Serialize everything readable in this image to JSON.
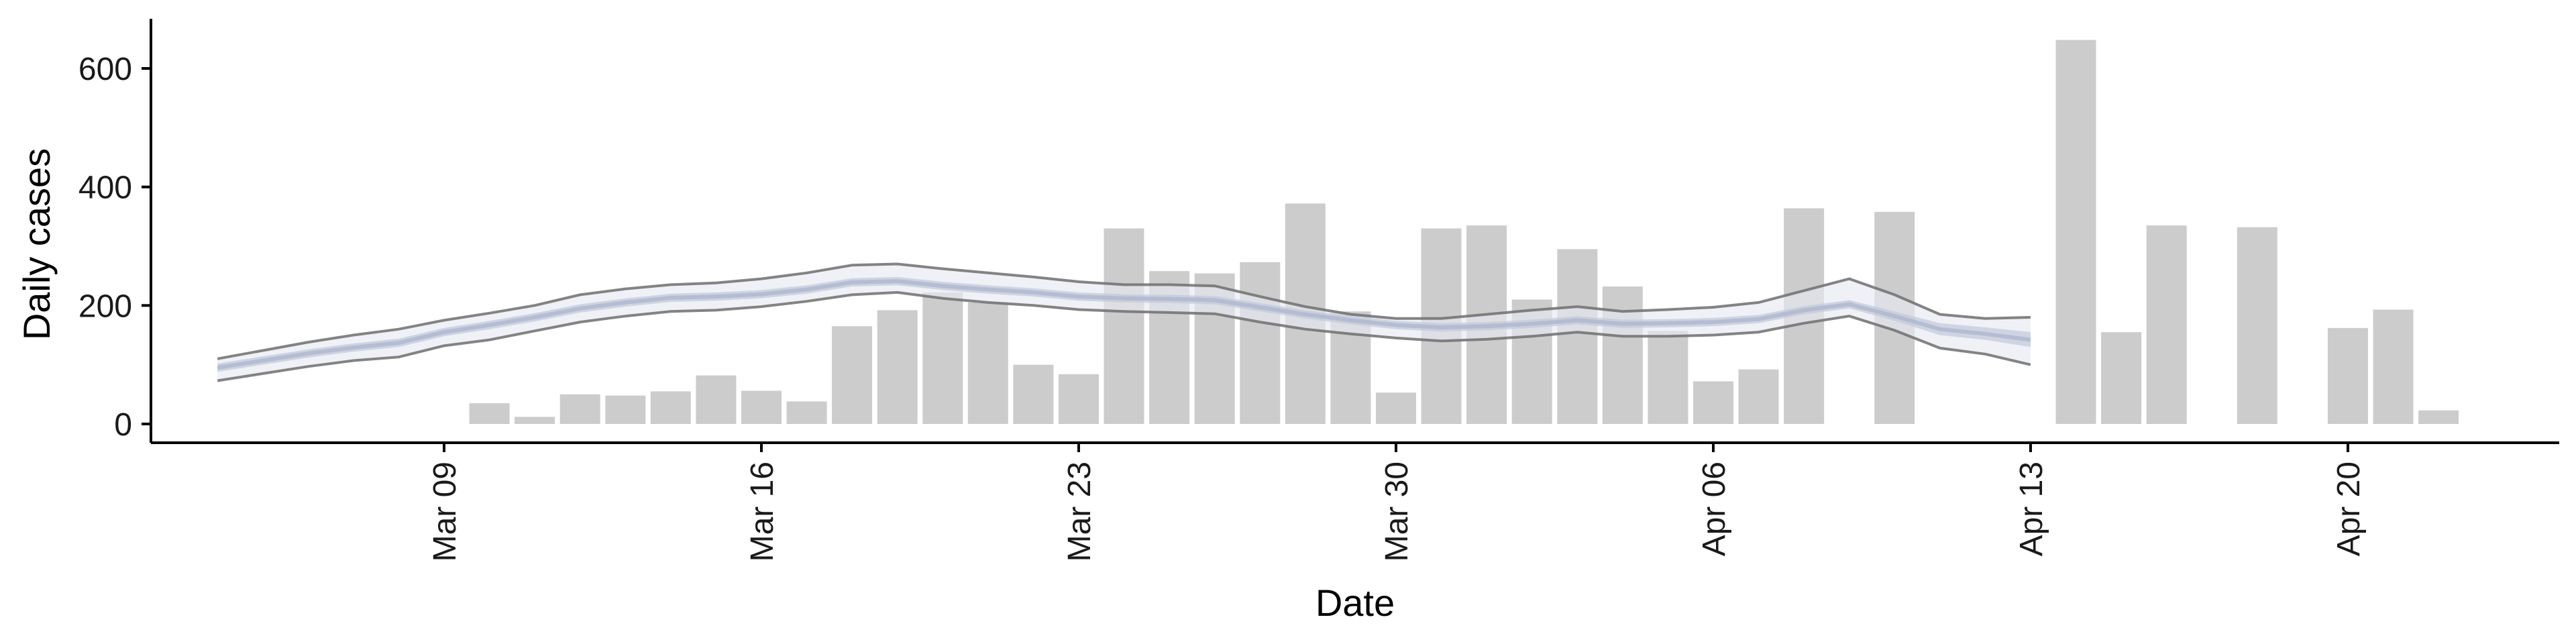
{
  "chart_data": {
    "type": "bar",
    "xlabel": "Date",
    "ylabel": "Daily cases",
    "ylim": [
      -30,
      680
    ],
    "yticks": [
      0,
      200,
      400,
      600
    ],
    "grid": false,
    "legend": "none",
    "x_ticks": [
      {
        "x": "2020-03-09",
        "label": "Mar 09"
      },
      {
        "x": "2020-03-16",
        "label": "Mar 16"
      },
      {
        "x": "2020-03-23",
        "label": "Mar 23"
      },
      {
        "x": "2020-03-30",
        "label": "Mar 30"
      },
      {
        "x": "2020-04-06",
        "label": "Apr 06"
      },
      {
        "x": "2020-04-13",
        "label": "Apr 13"
      },
      {
        "x": "2020-04-20",
        "label": "Apr 20"
      }
    ],
    "bars": [
      {
        "x": "2020-03-10",
        "y": 35
      },
      {
        "x": "2020-03-11",
        "y": 12
      },
      {
        "x": "2020-03-12",
        "y": 50
      },
      {
        "x": "2020-03-13",
        "y": 48
      },
      {
        "x": "2020-03-14",
        "y": 55
      },
      {
        "x": "2020-03-15",
        "y": 82
      },
      {
        "x": "2020-03-16",
        "y": 56
      },
      {
        "x": "2020-03-17",
        "y": 38
      },
      {
        "x": "2020-03-18",
        "y": 165
      },
      {
        "x": "2020-03-19",
        "y": 192
      },
      {
        "x": "2020-03-20",
        "y": 222
      },
      {
        "x": "2020-03-21",
        "y": 205
      },
      {
        "x": "2020-03-22",
        "y": 100
      },
      {
        "x": "2020-03-23",
        "y": 84
      },
      {
        "x": "2020-03-24",
        "y": 330
      },
      {
        "x": "2020-03-25",
        "y": 258
      },
      {
        "x": "2020-03-26",
        "y": 254
      },
      {
        "x": "2020-03-27",
        "y": 273
      },
      {
        "x": "2020-03-28",
        "y": 372
      },
      {
        "x": "2020-03-29",
        "y": 190
      },
      {
        "x": "2020-03-30",
        "y": 53
      },
      {
        "x": "2020-03-31",
        "y": 330
      },
      {
        "x": "2020-04-01",
        "y": 335
      },
      {
        "x": "2020-04-02",
        "y": 210
      },
      {
        "x": "2020-04-03",
        "y": 295
      },
      {
        "x": "2020-04-04",
        "y": 232
      },
      {
        "x": "2020-04-05",
        "y": 157
      },
      {
        "x": "2020-04-06",
        "y": 72
      },
      {
        "x": "2020-04-07",
        "y": 92
      },
      {
        "x": "2020-04-08",
        "y": 364
      },
      {
        "x": "2020-04-10",
        "y": 358
      },
      {
        "x": "2020-04-14",
        "y": 648
      },
      {
        "x": "2020-04-15",
        "y": 155
      },
      {
        "x": "2020-04-16",
        "y": 335
      },
      {
        "x": "2020-04-18",
        "y": 332
      },
      {
        "x": "2020-04-20",
        "y": 162
      },
      {
        "x": "2020-04-21",
        "y": 193
      },
      {
        "x": "2020-04-22",
        "y": 23
      }
    ],
    "estimate": {
      "x": [
        "2020-03-04",
        "2020-03-05",
        "2020-03-06",
        "2020-03-07",
        "2020-03-08",
        "2020-03-09",
        "2020-03-10",
        "2020-03-11",
        "2020-03-12",
        "2020-03-13",
        "2020-03-14",
        "2020-03-15",
        "2020-03-16",
        "2020-03-17",
        "2020-03-18",
        "2020-03-19",
        "2020-03-20",
        "2020-03-21",
        "2020-03-22",
        "2020-03-23",
        "2020-03-24",
        "2020-03-25",
        "2020-03-26",
        "2020-03-27",
        "2020-03-28",
        "2020-03-29",
        "2020-03-30",
        "2020-03-31",
        "2020-04-01",
        "2020-04-02",
        "2020-04-03",
        "2020-04-04",
        "2020-04-05",
        "2020-04-06",
        "2020-04-07",
        "2020-04-08",
        "2020-04-09",
        "2020-04-10",
        "2020-04-11",
        "2020-04-12",
        "2020-04-13"
      ],
      "lower90": [
        73,
        85,
        97,
        107,
        113,
        132,
        142,
        157,
        172,
        182,
        190,
        192,
        198,
        207,
        218,
        222,
        212,
        205,
        200,
        193,
        190,
        188,
        186,
        172,
        160,
        152,
        145,
        140,
        143,
        148,
        155,
        148,
        148,
        150,
        155,
        170,
        182,
        158,
        128,
        118,
        100
      ],
      "lower50": [
        88,
        100,
        112,
        122,
        130,
        148,
        160,
        173,
        188,
        198,
        206,
        208,
        212,
        220,
        232,
        234,
        226,
        220,
        215,
        208,
        205,
        204,
        202,
        190,
        178,
        168,
        160,
        156,
        158,
        162,
        168,
        162,
        163,
        165,
        170,
        185,
        195,
        174,
        150,
        142,
        130
      ],
      "median": [
        95,
        107,
        119,
        129,
        137,
        155,
        167,
        180,
        195,
        205,
        213,
        215,
        219,
        227,
        239,
        241,
        233,
        227,
        222,
        215,
        212,
        211,
        209,
        197,
        185,
        175,
        167,
        163,
        165,
        169,
        175,
        169,
        170,
        172,
        177,
        192,
        202,
        182,
        160,
        152,
        142
      ],
      "upper50": [
        102,
        114,
        126,
        136,
        144,
        162,
        174,
        187,
        202,
        212,
        220,
        222,
        226,
        234,
        246,
        248,
        240,
        234,
        229,
        222,
        219,
        218,
        216,
        204,
        192,
        182,
        174,
        170,
        172,
        176,
        182,
        176,
        177,
        179,
        184,
        199,
        209,
        190,
        170,
        163,
        155
      ],
      "upper90": [
        110,
        124,
        138,
        150,
        160,
        175,
        187,
        200,
        218,
        228,
        235,
        238,
        245,
        255,
        268,
        270,
        262,
        255,
        248,
        240,
        235,
        235,
        233,
        215,
        198,
        185,
        178,
        178,
        185,
        192,
        198,
        190,
        193,
        197,
        205,
        225,
        245,
        218,
        185,
        178,
        180
      ]
    },
    "colors": {
      "bars": "#cccccc",
      "band_outer": "#e6e9f1",
      "band_inner": "#c3c9db",
      "median": "#aeb6ce",
      "bound_lines": "#6e6e6e",
      "axis": "#000000"
    }
  }
}
